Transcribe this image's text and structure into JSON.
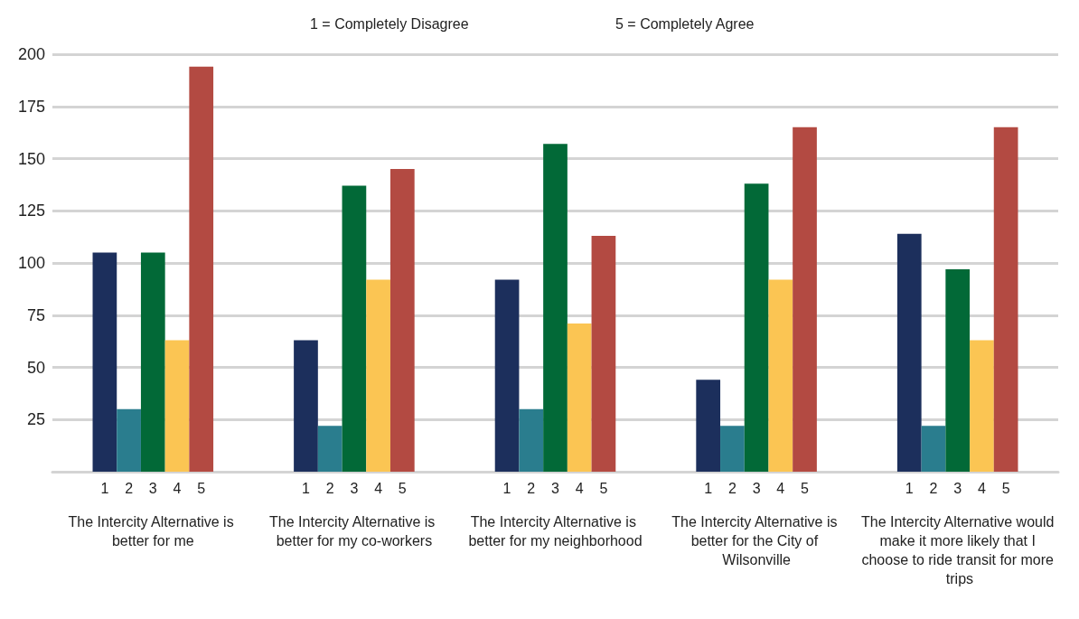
{
  "chart_data": {
    "type": "bar",
    "annotations": [
      "1 = Completely Disagree",
      "5 = Completely Agree"
    ],
    "categories": [
      "The Intercity Alternative is better for me",
      "The Intercity Alternative is better for my co-workers",
      "The Intercity Alternative is better for my neighborhood",
      "The Intercity Alternative is better for the City of Wilsonville",
      "The Intercity Alternative would make it more likely that I choose to ride transit for more trips"
    ],
    "series": [
      {
        "name": "1",
        "color": "#1c2f5c",
        "values": [
          105,
          63,
          92,
          44,
          114
        ]
      },
      {
        "name": "2",
        "color": "#2a7d8e",
        "values": [
          30,
          22,
          30,
          22,
          22
        ]
      },
      {
        "name": "3",
        "color": "#026937",
        "values": [
          105,
          137,
          157,
          138,
          97
        ]
      },
      {
        "name": "4",
        "color": "#fbc553",
        "values": [
          63,
          92,
          71,
          92,
          63
        ]
      },
      {
        "name": "5",
        "color": "#b34a42",
        "values": [
          194,
          145,
          113,
          165,
          165
        ]
      }
    ],
    "ylim": [
      0,
      200
    ],
    "yticks": [
      25,
      50,
      75,
      100,
      125,
      150,
      175,
      200
    ],
    "grid": "y",
    "legend": false
  }
}
